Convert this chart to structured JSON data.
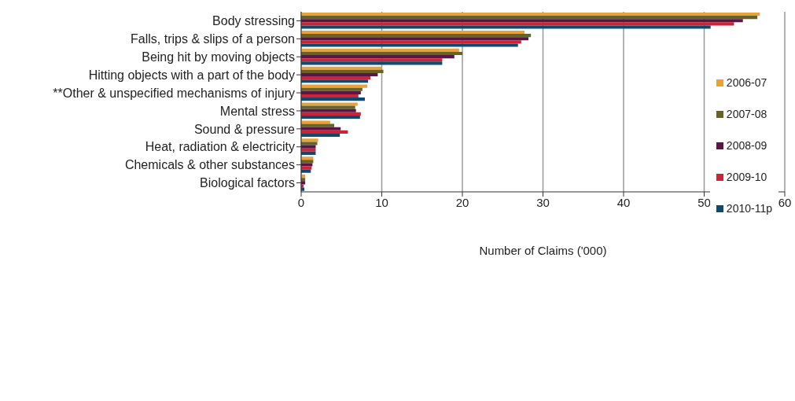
{
  "chart_data": {
    "type": "bar",
    "orientation": "horizontal",
    "xlabel": "Number of Claims ('000)",
    "categories": [
      "Body stressing",
      "Falls, trips & slips of a person",
      "Being hit by moving objects",
      "Hitting objects with a part of the body",
      "**Other & unspecified mechanisms of injury",
      "Mental stress",
      "Sound & pressure",
      "Heat, radiation & electricity",
      "Chemicals & other substances",
      "Biological factors"
    ],
    "series": [
      {
        "name": "2006-07",
        "color": "#e8a23c",
        "values": [
          56.9,
          27.7,
          19.6,
          10.0,
          8.2,
          7.0,
          3.6,
          2.1,
          1.5,
          0.5
        ]
      },
      {
        "name": "2007-08",
        "color": "#676228",
        "values": [
          56.6,
          28.5,
          20.0,
          10.2,
          7.6,
          6.7,
          4.1,
          2.0,
          1.5,
          0.5
        ]
      },
      {
        "name": "2008-09",
        "color": "#5a1446",
        "values": [
          54.8,
          28.2,
          19.0,
          9.5,
          7.4,
          6.8,
          4.9,
          1.8,
          1.4,
          0.5
        ]
      },
      {
        "name": "2009-10",
        "color": "#cc2336",
        "values": [
          53.7,
          27.3,
          17.5,
          8.6,
          7.1,
          7.4,
          5.8,
          1.8,
          1.3,
          0.3
        ]
      },
      {
        "name": "2010-11p",
        "color": "#0d4a6e",
        "values": [
          50.8,
          26.9,
          17.5,
          8.3,
          7.9,
          7.3,
          4.8,
          1.8,
          1.2,
          0.4
        ]
      }
    ],
    "xlim": [
      0,
      60
    ],
    "xticks": [
      0,
      10,
      20,
      30,
      40,
      50,
      60
    ],
    "grid": "x",
    "legend": "right"
  }
}
